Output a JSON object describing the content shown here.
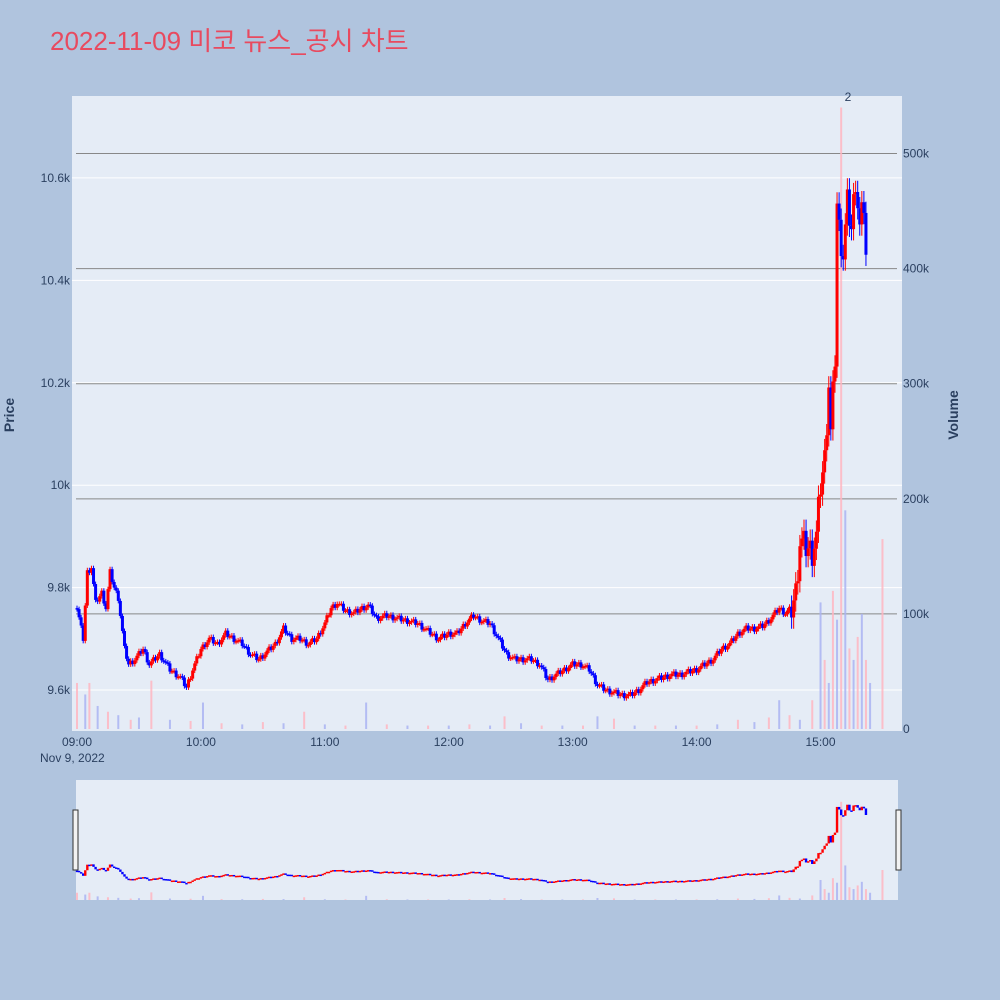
{
  "chart_data": {
    "type": "candlestick",
    "title": "2022-11-09 미코 뉴스_공시 차트",
    "ylabel": "Price",
    "y2label": "Volume",
    "x_ticks": [
      "09:00",
      "10:00",
      "11:00",
      "12:00",
      "13:00",
      "14:00",
      "15:00"
    ],
    "x_date": "Nov 9, 2022",
    "y_ticks": [
      "9.6k",
      "9.8k",
      "10k",
      "10.2k",
      "10.4k",
      "10.6k"
    ],
    "y2_ticks": [
      "0",
      "100k",
      "200k",
      "300k",
      "400k",
      "500k"
    ],
    "ylim": [
      9520,
      10760
    ],
    "y2lim": [
      0,
      550000
    ],
    "annotation": "2",
    "colors": {
      "increasing": "#ff0000",
      "decreasing": "#0000ff",
      "plot_bg": "#e5ecf6",
      "paper_bg": "#b0c4de",
      "title": "#e84a5f",
      "vol_up": "#ffb6c1",
      "vol_down": "#aab4f2"
    },
    "price_path": [
      [
        "09:00",
        9760
      ],
      [
        "09:03",
        9700
      ],
      [
        "09:05",
        9830
      ],
      [
        "09:07",
        9840
      ],
      [
        "09:09",
        9770
      ],
      [
        "09:12",
        9790
      ],
      [
        "09:14",
        9760
      ],
      [
        "09:16",
        9830
      ],
      [
        "09:18",
        9800
      ],
      [
        "09:20",
        9780
      ],
      [
        "09:23",
        9680
      ],
      [
        "09:25",
        9650
      ],
      [
        "09:28",
        9660
      ],
      [
        "09:32",
        9680
      ],
      [
        "09:35",
        9650
      ],
      [
        "09:40",
        9670
      ],
      [
        "09:45",
        9640
      ],
      [
        "09:50",
        9625
      ],
      [
        "09:53",
        9605
      ],
      [
        "09:56",
        9640
      ],
      [
        "10:00",
        9680
      ],
      [
        "10:04",
        9700
      ],
      [
        "10:08",
        9690
      ],
      [
        "10:12",
        9710
      ],
      [
        "10:16",
        9700
      ],
      [
        "10:20",
        9690
      ],
      [
        "10:24",
        9670
      ],
      [
        "10:28",
        9660
      ],
      [
        "10:32",
        9675
      ],
      [
        "10:36",
        9690
      ],
      [
        "10:40",
        9720
      ],
      [
        "10:44",
        9700
      ],
      [
        "10:48",
        9700
      ],
      [
        "10:52",
        9690
      ],
      [
        "10:56",
        9700
      ],
      [
        "11:00",
        9730
      ],
      [
        "11:03",
        9760
      ],
      [
        "11:06",
        9770
      ],
      [
        "11:10",
        9755
      ],
      [
        "11:14",
        9750
      ],
      [
        "11:18",
        9760
      ],
      [
        "11:21",
        9765
      ],
      [
        "11:25",
        9740
      ],
      [
        "11:30",
        9745
      ],
      [
        "11:35",
        9740
      ],
      [
        "11:40",
        9735
      ],
      [
        "11:45",
        9730
      ],
      [
        "11:50",
        9715
      ],
      [
        "11:55",
        9700
      ],
      [
        "12:00",
        9710
      ],
      [
        "12:04",
        9710
      ],
      [
        "12:08",
        9730
      ],
      [
        "12:12",
        9745
      ],
      [
        "12:16",
        9735
      ],
      [
        "12:20",
        9730
      ],
      [
        "12:24",
        9700
      ],
      [
        "12:28",
        9670
      ],
      [
        "12:32",
        9660
      ],
      [
        "12:36",
        9660
      ],
      [
        "12:40",
        9660
      ],
      [
        "12:44",
        9650
      ],
      [
        "12:48",
        9620
      ],
      [
        "12:52",
        9630
      ],
      [
        "12:56",
        9640
      ],
      [
        "13:00",
        9650
      ],
      [
        "13:04",
        9650
      ],
      [
        "13:08",
        9640
      ],
      [
        "13:12",
        9610
      ],
      [
        "13:16",
        9600
      ],
      [
        "13:20",
        9595
      ],
      [
        "13:24",
        9590
      ],
      [
        "13:28",
        9590
      ],
      [
        "13:32",
        9600
      ],
      [
        "13:36",
        9615
      ],
      [
        "13:40",
        9620
      ],
      [
        "13:44",
        9625
      ],
      [
        "13:48",
        9630
      ],
      [
        "13:52",
        9630
      ],
      [
        "13:56",
        9635
      ],
      [
        "14:00",
        9640
      ],
      [
        "14:04",
        9650
      ],
      [
        "14:08",
        9660
      ],
      [
        "14:12",
        9680
      ],
      [
        "14:16",
        9690
      ],
      [
        "14:20",
        9710
      ],
      [
        "14:24",
        9720
      ],
      [
        "14:28",
        9720
      ],
      [
        "14:32",
        9725
      ],
      [
        "14:36",
        9740
      ],
      [
        "14:40",
        9760
      ],
      [
        "14:43",
        9750
      ],
      [
        "14:46",
        9760
      ],
      [
        "14:48",
        9790
      ],
      [
        "14:50",
        9890
      ],
      [
        "14:53",
        9880
      ],
      [
        "14:56",
        9870
      ],
      [
        "14:58",
        9900
      ],
      [
        "15:00",
        10000
      ],
      [
        "15:02",
        10050
      ],
      [
        "15:04",
        10200
      ],
      [
        "15:05",
        10100
      ],
      [
        "15:07",
        10250
      ],
      [
        "15:08",
        10550
      ],
      [
        "15:09",
        10500
      ],
      [
        "15:11",
        10450
      ],
      [
        "15:13",
        10550
      ],
      [
        "15:15",
        10500
      ],
      [
        "15:17",
        10600
      ],
      [
        "15:19",
        10500
      ],
      [
        "15:21",
        10550
      ],
      [
        "15:22",
        10450
      ]
    ],
    "volume_bars": [
      [
        "09:00",
        40000
      ],
      [
        "09:04",
        30000
      ],
      [
        "09:06",
        40000
      ],
      [
        "09:10",
        20000
      ],
      [
        "09:15",
        15000
      ],
      [
        "09:20",
        12000
      ],
      [
        "09:26",
        8000
      ],
      [
        "09:30",
        10000
      ],
      [
        "09:36",
        42000
      ],
      [
        "09:45",
        8000
      ],
      [
        "09:55",
        7000
      ],
      [
        "10:01",
        23000
      ],
      [
        "10:10",
        5000
      ],
      [
        "10:20",
        4000
      ],
      [
        "10:30",
        6000
      ],
      [
        "10:40",
        5000
      ],
      [
        "10:50",
        15000
      ],
      [
        "11:00",
        4000
      ],
      [
        "11:10",
        3000
      ],
      [
        "11:20",
        23000
      ],
      [
        "11:30",
        4000
      ],
      [
        "11:40",
        3000
      ],
      [
        "11:50",
        3000
      ],
      [
        "12:00",
        3000
      ],
      [
        "12:10",
        4000
      ],
      [
        "12:20",
        3000
      ],
      [
        "12:27",
        11000
      ],
      [
        "12:35",
        5000
      ],
      [
        "12:45",
        3000
      ],
      [
        "12:55",
        3000
      ],
      [
        "13:05",
        3000
      ],
      [
        "13:12",
        11000
      ],
      [
        "13:20",
        9000
      ],
      [
        "13:30",
        3000
      ],
      [
        "13:40",
        3000
      ],
      [
        "13:50",
        3000
      ],
      [
        "14:00",
        3000
      ],
      [
        "14:10",
        4000
      ],
      [
        "14:20",
        8000
      ],
      [
        "14:28",
        6000
      ],
      [
        "14:35",
        10000
      ],
      [
        "14:40",
        25000
      ],
      [
        "14:45",
        12000
      ],
      [
        "14:50",
        8000
      ],
      [
        "14:56",
        25000
      ],
      [
        "15:00",
        110000
      ],
      [
        "15:02",
        60000
      ],
      [
        "15:04",
        40000
      ],
      [
        "15:06",
        120000
      ],
      [
        "15:08",
        95000
      ],
      [
        "15:10",
        540000
      ],
      [
        "15:12",
        190000
      ],
      [
        "15:14",
        70000
      ],
      [
        "15:16",
        60000
      ],
      [
        "15:18",
        80000
      ],
      [
        "15:20",
        100000
      ],
      [
        "15:22",
        60000
      ],
      [
        "15:24",
        40000
      ],
      [
        "15:30",
        165000
      ]
    ]
  }
}
